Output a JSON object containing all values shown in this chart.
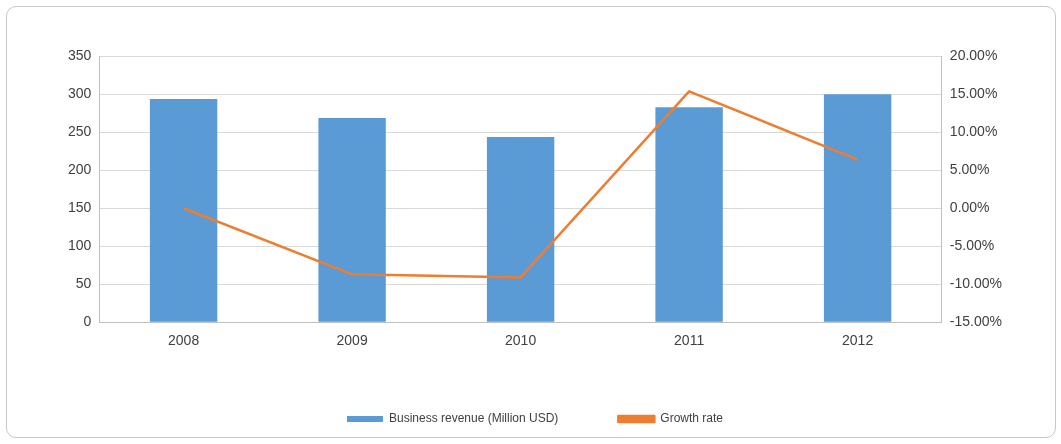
{
  "chart_data": {
    "type": "bar",
    "categories": [
      "2008",
      "2009",
      "2010",
      "2011",
      "2012"
    ],
    "series": [
      {
        "name": "Business revenue (Million USD)",
        "color": "#5b9bd5",
        "values": [
          294,
          269,
          244,
          283,
          300
        ]
      },
      {
        "name": "Growth rate",
        "type": "line",
        "axis": "y2",
        "color": "#ed7d31",
        "values": [
          0,
          -8.7,
          -9.1,
          15.4,
          6.4
        ]
      }
    ],
    "ylim": [
      0,
      350
    ],
    "yticks": [
      0,
      50,
      100,
      150,
      200,
      250,
      300,
      350
    ],
    "y2lim": [
      -15,
      20
    ],
    "y2ticks": [
      {
        "value": -15,
        "label": "-15.00%"
      },
      {
        "value": -10,
        "label": "-10.00%"
      },
      {
        "value": -5,
        "label": "-5.00%"
      },
      {
        "value": 0,
        "label": "0.00%"
      },
      {
        "value": 5,
        "label": "5.00%"
      },
      {
        "value": 10,
        "label": "10.00%"
      },
      {
        "value": 15,
        "label": "15.00%"
      },
      {
        "value": 20,
        "label": "20.00%"
      }
    ],
    "grid": "y",
    "legend": "bottom",
    "marker": "none",
    "line_style": "solid"
  }
}
